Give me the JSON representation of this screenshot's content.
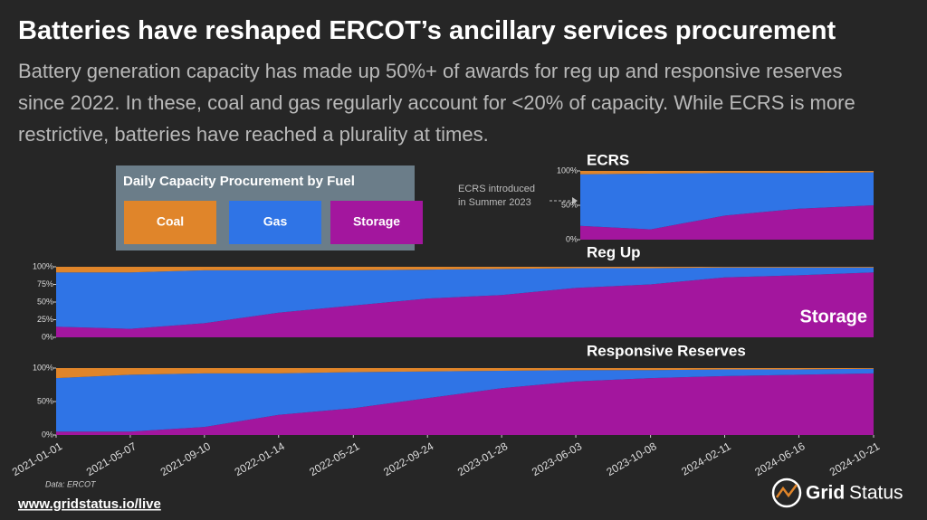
{
  "header": {
    "title": "Batteries have reshaped ERCOT’s ancillary services procurement",
    "subtitle": "Battery generation capacity has made up 50%+ of awards for reg up and responsive reserves since 2022. In these, coal and gas regularly account for <20% of capacity. While ECRS is more restrictive, batteries have reached a plurality at times."
  },
  "legend": {
    "title": "Daily Capacity Procurement by Fuel"
  },
  "chart_data": [
    {
      "type": "stacked-area",
      "title": "ECRS",
      "annotation": [
        "ECRS introduced",
        "in Summer 2023"
      ],
      "x": [
        "2023-06-10",
        "2023-10-08",
        "2024-02-11",
        "2024-06-16",
        "2024-10-21"
      ],
      "xlim": [
        "2023-06-10",
        "2024-10-21"
      ],
      "ylim": [
        0,
        100
      ],
      "yticks": [
        {
          "value": 0,
          "label": "0%"
        },
        {
          "value": 50,
          "label": "50%"
        },
        {
          "value": 100,
          "label": "100%"
        }
      ],
      "series": [
        {
          "name": "Storage",
          "color": "#a3169e",
          "values": [
            20,
            15,
            35,
            45,
            50
          ]
        },
        {
          "name": "Gas",
          "color": "#2f74e6",
          "values": [
            75,
            81,
            62,
            52,
            48
          ]
        },
        {
          "name": "Coal",
          "color": "#e0852a",
          "values": [
            5,
            4,
            3,
            3,
            2
          ]
        }
      ]
    },
    {
      "type": "stacked-area",
      "title": "Reg Up",
      "annotation": "Storage",
      "x": [
        "2021-01-01",
        "2021-05-07",
        "2021-09-10",
        "2022-01-14",
        "2022-05-21",
        "2022-09-24",
        "2023-01-28",
        "2023-06-03",
        "2023-10-08",
        "2024-02-11",
        "2024-06-16",
        "2024-10-21"
      ],
      "xlim": [
        "2021-01-01",
        "2024-10-21"
      ],
      "ylim": [
        0,
        100
      ],
      "yticks": [
        {
          "value": 0,
          "label": "0%"
        },
        {
          "value": 25,
          "label": "25%"
        },
        {
          "value": 50,
          "label": "50%"
        },
        {
          "value": 75,
          "label": "75%"
        },
        {
          "value": 100,
          "label": "100%"
        }
      ],
      "series": [
        {
          "name": "Storage",
          "color": "#a3169e",
          "values": [
            15,
            12,
            20,
            35,
            45,
            55,
            60,
            70,
            75,
            85,
            88,
            92
          ]
        },
        {
          "name": "Gas",
          "color": "#2f74e6",
          "values": [
            77,
            80,
            75,
            60,
            50,
            41,
            37,
            28,
            23,
            14,
            11,
            7
          ]
        },
        {
          "name": "Coal",
          "color": "#e0852a",
          "values": [
            8,
            8,
            5,
            5,
            5,
            4,
            3,
            2,
            2,
            1,
            1,
            1
          ]
        }
      ]
    },
    {
      "type": "stacked-area",
      "title": "Responsive Reserves",
      "x": [
        "2021-01-01",
        "2021-05-07",
        "2021-09-10",
        "2022-01-14",
        "2022-05-21",
        "2022-09-24",
        "2023-01-28",
        "2023-06-03",
        "2023-10-08",
        "2024-02-11",
        "2024-06-16",
        "2024-10-21"
      ],
      "xlim": [
        "2021-01-01",
        "2024-10-21"
      ],
      "xticks": [
        "2021-01-01",
        "2021-05-07",
        "2021-09-10",
        "2022-01-14",
        "2022-05-21",
        "2022-09-24",
        "2023-01-28",
        "2023-06-03",
        "2023-10-08",
        "2024-02-11",
        "2024-06-16",
        "2024-10-21"
      ],
      "ylim": [
        0,
        100
      ],
      "yticks": [
        {
          "value": 0,
          "label": "0%"
        },
        {
          "value": 50,
          "label": "50%"
        },
        {
          "value": 100,
          "label": "100%"
        }
      ],
      "series": [
        {
          "name": "Storage",
          "color": "#a3169e",
          "values": [
            5,
            5,
            12,
            30,
            40,
            55,
            70,
            80,
            85,
            88,
            90,
            92
          ]
        },
        {
          "name": "Gas",
          "color": "#2f74e6",
          "values": [
            80,
            85,
            80,
            62,
            54,
            40,
            26,
            17,
            12,
            10,
            8,
            7
          ]
        },
        {
          "name": "Coal",
          "color": "#e0852a",
          "values": [
            15,
            10,
            8,
            8,
            6,
            5,
            4,
            3,
            3,
            2,
            2,
            1
          ]
        }
      ]
    }
  ],
  "footer": {
    "source": "Data: ERCOT",
    "url": "www.gridstatus.io/live",
    "logo": [
      "Grid",
      "Status"
    ]
  }
}
